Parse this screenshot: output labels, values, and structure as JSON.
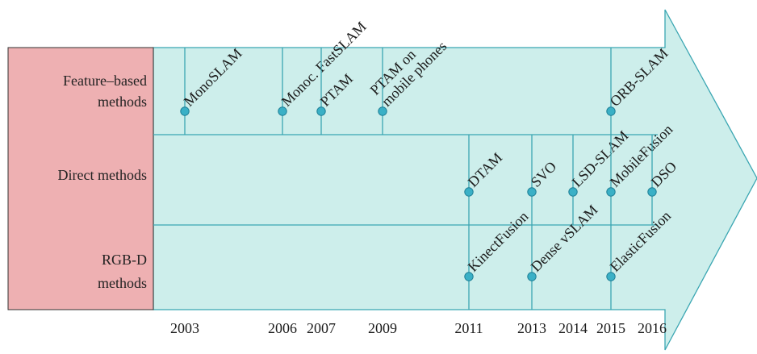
{
  "colors": {
    "arrow_fill": "#cdeeeb",
    "arrow_stroke": "#3aa6b2",
    "label_panel": "#eeb0b2",
    "marker_fill": "#3ab0c6",
    "marker_stroke": "#1f7f96"
  },
  "categories": [
    {
      "id": "feature",
      "lines": [
        "Feature–based",
        "methods"
      ]
    },
    {
      "id": "direct",
      "lines": [
        "Direct methods"
      ]
    },
    {
      "id": "rgbd",
      "lines": [
        "RGB-D",
        "methods"
      ]
    }
  ],
  "years": [
    "2003",
    "2006",
    "2007",
    "2009",
    "2011",
    "2013",
    "2014",
    "2015",
    "2016"
  ],
  "milestones": [
    {
      "category": "feature",
      "year": "2003",
      "lines": [
        "MonoSLAM"
      ]
    },
    {
      "category": "feature",
      "year": "2006",
      "lines": [
        "Monoc. FastSLAM"
      ]
    },
    {
      "category": "feature",
      "year": "2007",
      "lines": [
        "PTAM"
      ]
    },
    {
      "category": "feature",
      "year": "2009",
      "lines": [
        "PTAM on",
        "mobile phones"
      ]
    },
    {
      "category": "feature",
      "year": "2015",
      "lines": [
        "ORB-SLAM"
      ]
    },
    {
      "category": "direct",
      "year": "2011",
      "lines": [
        "DTAM"
      ]
    },
    {
      "category": "direct",
      "year": "2013",
      "lines": [
        "SVO"
      ]
    },
    {
      "category": "direct",
      "year": "2014",
      "lines": [
        "LSD-SLAM"
      ]
    },
    {
      "category": "direct",
      "year": "2015",
      "lines": [
        "MobileFusion"
      ]
    },
    {
      "category": "direct",
      "year": "2016",
      "lines": [
        "DSO"
      ]
    },
    {
      "category": "rgbd",
      "year": "2011",
      "lines": [
        "KinectFusion"
      ]
    },
    {
      "category": "rgbd",
      "year": "2013",
      "lines": [
        "Dense vSLAM"
      ]
    },
    {
      "category": "rgbd",
      "year": "2015",
      "lines": [
        "ElasticFusion"
      ]
    }
  ]
}
